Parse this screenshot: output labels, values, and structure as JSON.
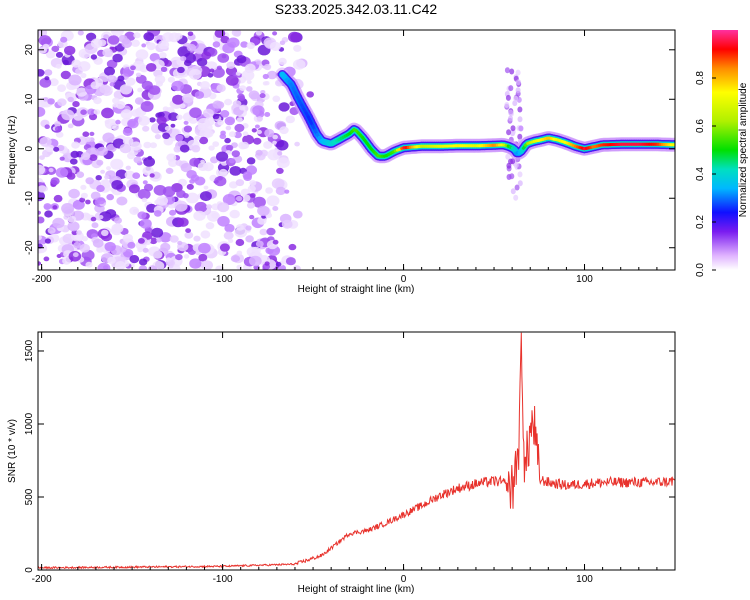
{
  "title": "S233.2025.342.03.11.C42",
  "colors": {
    "snr_line": "#e8322c",
    "axis": "#000000",
    "noise": "#8a2be2"
  },
  "chart_data": [
    {
      "type": "heatmap",
      "xlabel": "Height of straight line (km)",
      "ylabel": "Frequency (Hz)",
      "xlim": [
        -202,
        150
      ],
      "ylim": [
        -24.5,
        24
      ],
      "xticks": [
        -200,
        -100,
        0,
        100
      ],
      "yticks": [
        -20,
        -10,
        0,
        10,
        20
      ],
      "colorbar": {
        "label": "Normalized spectral amplitude",
        "ticks": [
          0.0,
          0.2,
          0.4,
          0.6,
          0.8
        ],
        "range": [
          0,
          1
        ],
        "colormap": "rainbow"
      },
      "ridge": {
        "x": [
          -67,
          -62,
          -58,
          -52,
          -48,
          -45,
          -40,
          -35,
          -30,
          -27,
          -22,
          -18,
          -14,
          -10,
          -5,
          0,
          10,
          20,
          30,
          40,
          50,
          55,
          58,
          61,
          63,
          65,
          68,
          72,
          76,
          80,
          85,
          90,
          95,
          100,
          105,
          110,
          120,
          130,
          140,
          150
        ],
        "y": [
          15,
          13,
          10,
          6,
          3,
          1.5,
          1,
          2,
          3,
          4,
          2,
          0,
          -1.5,
          -1.5,
          -0.5,
          0.2,
          0.5,
          0.5,
          0.6,
          0.6,
          0.7,
          0.8,
          0.5,
          0,
          -1,
          -0.5,
          1,
          1.5,
          1.8,
          2.2,
          1.8,
          1.2,
          0.5,
          0,
          0.4,
          0.8,
          0.9,
          0.9,
          0.9,
          0.8
        ],
        "amplitude": [
          0.35,
          0.3,
          0.28,
          0.25,
          0.3,
          0.35,
          0.4,
          0.45,
          0.5,
          0.55,
          0.5,
          0.5,
          0.55,
          0.5,
          0.55,
          0.95,
          0.65,
          0.7,
          0.75,
          0.7,
          0.85,
          0.7,
          0.5,
          0.4,
          0.3,
          0.4,
          0.6,
          0.7,
          0.75,
          0.8,
          0.7,
          0.75,
          0.85,
          0.95,
          0.85,
          0.9,
          0.95,
          0.95,
          0.9,
          0.7
        ]
      }
    },
    {
      "type": "line",
      "xlabel": "Height of straight line (km)",
      "ylabel": "SNR (10 * v/v)",
      "xlim": [
        -202,
        150
      ],
      "ylim": [
        0,
        1630
      ],
      "xticks": [
        -200,
        -100,
        0,
        100
      ],
      "yticks": [
        0,
        500,
        1000,
        1500
      ],
      "envelope": {
        "x": [
          -202,
          -150,
          -100,
          -60,
          -55,
          -45,
          -35,
          -30,
          -20,
          -10,
          0,
          10,
          20,
          30,
          40,
          50,
          55,
          58,
          60,
          62,
          64,
          65,
          67,
          70,
          72,
          75,
          80,
          90,
          100,
          110,
          120,
          130,
          140,
          150
        ],
        "y": [
          15,
          20,
          25,
          40,
          60,
          100,
          200,
          250,
          270,
          320,
          380,
          440,
          510,
          560,
          590,
          610,
          600,
          560,
          550,
          700,
          900,
          1600,
          650,
          950,
          1000,
          620,
          600,
          580,
          590,
          600,
          600,
          600,
          600,
          610
        ]
      }
    }
  ]
}
